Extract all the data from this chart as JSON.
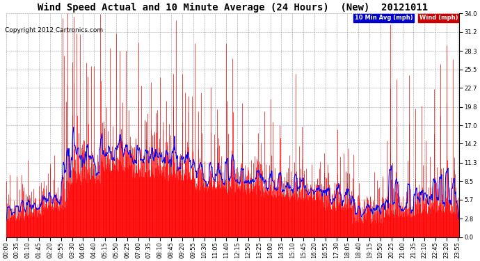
{
  "title": "Wind Speed Actual and 10 Minute Average (24 Hours)  (New)  20121011",
  "copyright": "Copyright 2012 Cartronics.com",
  "yticks": [
    0.0,
    2.8,
    5.7,
    8.5,
    11.3,
    14.2,
    17.0,
    19.8,
    22.7,
    25.5,
    28.3,
    31.2,
    34.0
  ],
  "ymax": 34.0,
  "ymin": 0.0,
  "legend_avg_label": "10 Min Avg (mph)",
  "legend_wind_label": "Wind (mph)",
  "legend_avg_bg": "#0000cc",
  "legend_wind_bg": "#cc0000",
  "bar_color": "#ff0000",
  "line_color": "#0000ff",
  "dark_bar_color": "#333333",
  "background_color": "#ffffff",
  "plot_bg_color": "#ffffff",
  "grid_color": "#999999",
  "title_fontsize": 10,
  "copyright_fontsize": 6.5,
  "tick_fontsize": 6
}
